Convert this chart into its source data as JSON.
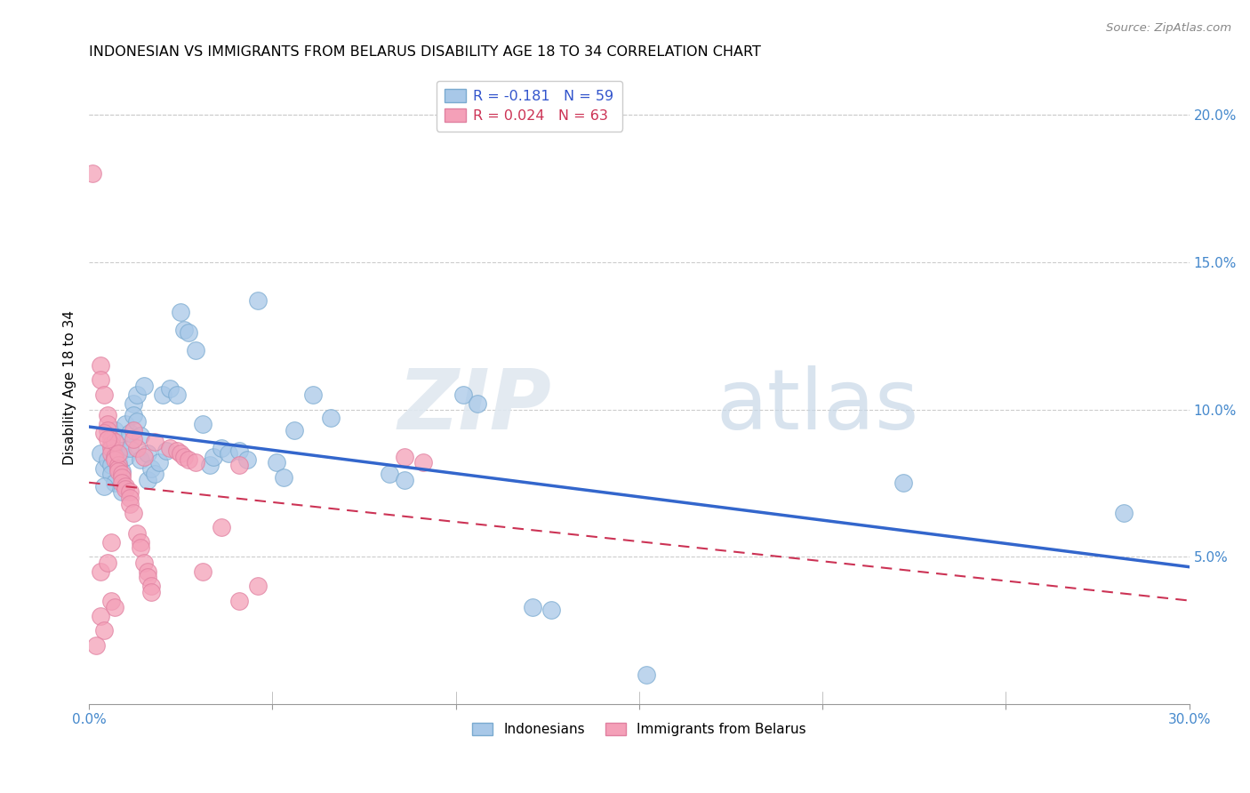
{
  "title": "INDONESIAN VS IMMIGRANTS FROM BELARUS DISABILITY AGE 18 TO 34 CORRELATION CHART",
  "source": "Source: ZipAtlas.com",
  "ylabel_label": "Disability Age 18 to 34",
  "xlim": [
    0.0,
    30.0
  ],
  "ylim": [
    0.0,
    21.5
  ],
  "x_tick_positions": [
    0.0,
    5.0,
    10.0,
    15.0,
    20.0,
    25.0,
    30.0
  ],
  "x_tick_labels_show": {
    "0.0": "0.0%",
    "30.0": "30.0%"
  },
  "y_tick_positions": [
    5.0,
    10.0,
    15.0,
    20.0
  ],
  "y_tick_labels": [
    "5.0%",
    "10.0%",
    "15.0%",
    "20.0%"
  ],
  "blue_R": -0.181,
  "blue_N": 59,
  "pink_R": 0.024,
  "pink_N": 63,
  "blue_color": "#a8c8e8",
  "pink_color": "#f4a0b8",
  "blue_line_color": "#3366cc",
  "pink_line_color": "#cc3355",
  "legend_label_blue": "Indonesians",
  "legend_label_pink": "Immigrants from Belarus",
  "watermark_zip": "ZIP",
  "watermark_atlas": "atlas",
  "blue_scatter": [
    [
      0.3,
      8.5
    ],
    [
      0.4,
      8.0
    ],
    [
      0.5,
      8.3
    ],
    [
      0.6,
      8.1
    ],
    [
      0.6,
      7.8
    ],
    [
      0.7,
      7.5
    ],
    [
      0.7,
      9.3
    ],
    [
      0.8,
      9.0
    ],
    [
      0.8,
      8.2
    ],
    [
      0.9,
      8.6
    ],
    [
      0.9,
      7.9
    ],
    [
      1.0,
      9.5
    ],
    [
      1.0,
      8.4
    ],
    [
      1.1,
      8.7
    ],
    [
      1.1,
      9.2
    ],
    [
      1.2,
      10.2
    ],
    [
      1.2,
      9.8
    ],
    [
      1.3,
      9.6
    ],
    [
      1.3,
      10.5
    ],
    [
      1.4,
      9.1
    ],
    [
      1.4,
      8.3
    ],
    [
      1.5,
      10.8
    ],
    [
      1.6,
      8.5
    ],
    [
      1.6,
      7.6
    ],
    [
      1.7,
      8.0
    ],
    [
      1.8,
      7.8
    ],
    [
      1.9,
      8.2
    ],
    [
      2.0,
      10.5
    ],
    [
      2.1,
      8.6
    ],
    [
      2.2,
      10.7
    ],
    [
      2.4,
      10.5
    ],
    [
      2.5,
      13.3
    ],
    [
      2.6,
      12.7
    ],
    [
      2.7,
      12.6
    ],
    [
      2.9,
      12.0
    ],
    [
      3.1,
      9.5
    ],
    [
      3.3,
      8.1
    ],
    [
      3.4,
      8.4
    ],
    [
      3.6,
      8.7
    ],
    [
      3.8,
      8.5
    ],
    [
      4.1,
      8.6
    ],
    [
      4.3,
      8.3
    ],
    [
      4.6,
      13.7
    ],
    [
      5.1,
      8.2
    ],
    [
      5.3,
      7.7
    ],
    [
      5.6,
      9.3
    ],
    [
      6.1,
      10.5
    ],
    [
      6.6,
      9.7
    ],
    [
      8.2,
      7.8
    ],
    [
      8.6,
      7.6
    ],
    [
      10.2,
      10.5
    ],
    [
      10.6,
      10.2
    ],
    [
      12.1,
      3.3
    ],
    [
      12.6,
      3.2
    ],
    [
      22.2,
      7.5
    ],
    [
      28.2,
      6.5
    ],
    [
      0.4,
      7.4
    ],
    [
      0.9,
      7.2
    ],
    [
      15.2,
      1.0
    ]
  ],
  "pink_scatter": [
    [
      0.1,
      18.0
    ],
    [
      0.3,
      11.5
    ],
    [
      0.3,
      11.0
    ],
    [
      0.4,
      10.5
    ],
    [
      0.5,
      9.8
    ],
    [
      0.5,
      9.5
    ],
    [
      0.5,
      9.3
    ],
    [
      0.6,
      9.0
    ],
    [
      0.6,
      8.8
    ],
    [
      0.6,
      8.7
    ],
    [
      0.6,
      8.5
    ],
    [
      0.7,
      8.4
    ],
    [
      0.7,
      8.3
    ],
    [
      0.7,
      8.9
    ],
    [
      0.8,
      8.1
    ],
    [
      0.8,
      8.0
    ],
    [
      0.8,
      7.9
    ],
    [
      0.9,
      7.8
    ],
    [
      0.9,
      7.7
    ],
    [
      0.9,
      7.5
    ],
    [
      1.0,
      7.4
    ],
    [
      1.0,
      7.3
    ],
    [
      1.1,
      7.2
    ],
    [
      1.1,
      7.0
    ],
    [
      1.1,
      6.8
    ],
    [
      1.2,
      6.5
    ],
    [
      1.2,
      9.3
    ],
    [
      1.3,
      8.7
    ],
    [
      1.3,
      5.8
    ],
    [
      1.4,
      5.5
    ],
    [
      1.4,
      5.3
    ],
    [
      1.5,
      8.4
    ],
    [
      1.5,
      4.8
    ],
    [
      1.6,
      4.5
    ],
    [
      1.6,
      4.3
    ],
    [
      1.7,
      4.0
    ],
    [
      1.7,
      3.8
    ],
    [
      1.8,
      8.9
    ],
    [
      2.2,
      8.7
    ],
    [
      2.4,
      8.6
    ],
    [
      2.5,
      8.5
    ],
    [
      2.6,
      8.4
    ],
    [
      2.7,
      8.3
    ],
    [
      2.9,
      8.2
    ],
    [
      3.1,
      4.5
    ],
    [
      3.6,
      6.0
    ],
    [
      4.1,
      8.1
    ],
    [
      4.6,
      4.0
    ],
    [
      4.1,
      3.5
    ],
    [
      0.4,
      9.2
    ],
    [
      0.5,
      9.0
    ],
    [
      0.6,
      3.5
    ],
    [
      0.7,
      3.3
    ],
    [
      0.3,
      3.0
    ],
    [
      0.4,
      2.5
    ],
    [
      0.2,
      2.0
    ],
    [
      0.3,
      4.5
    ],
    [
      0.5,
      4.8
    ],
    [
      0.6,
      5.5
    ],
    [
      8.6,
      8.4
    ],
    [
      9.1,
      8.2
    ],
    [
      0.8,
      8.5
    ],
    [
      1.2,
      9.0
    ]
  ]
}
